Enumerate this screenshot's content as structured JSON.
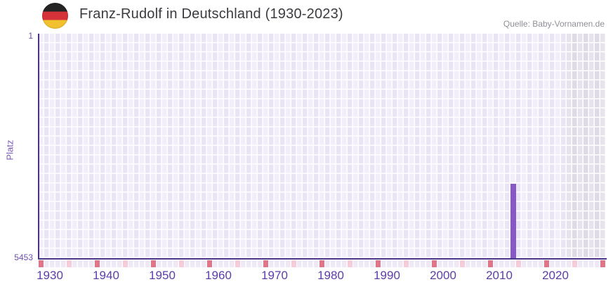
{
  "header": {
    "title": "Franz-Rudolf in Deutschland (1930-2023)",
    "source": "Quelle: Baby-Vornamen.de",
    "flag_icon": "german-flag-circle"
  },
  "chart_data": {
    "type": "bar",
    "title": "Franz-Rudolf in Deutschland (1930-2023)",
    "xlabel": "",
    "ylabel": "Platz",
    "x_range": [
      1930,
      2031
    ],
    "x_tick_labels": [
      "1930",
      "1940",
      "1950",
      "1960",
      "1970",
      "1980",
      "1990",
      "2000",
      "2010",
      "2020"
    ],
    "x_ticks": [
      1930,
      1940,
      1950,
      1960,
      1970,
      1980,
      1990,
      2000,
      2010,
      2020
    ],
    "decade_tick_years": [
      1930,
      1940,
      1950,
      1960,
      1970,
      1980,
      1990,
      2000,
      2010,
      2020,
      2030
    ],
    "half_decade_tick_years": [
      1935,
      1945,
      1955,
      1965,
      1975,
      1985,
      1995,
      2005,
      2015,
      2025
    ],
    "y_axis": {
      "top_label": "1",
      "bottom_label": "5453",
      "min": 1,
      "max": 5453,
      "reversed": true,
      "grid": true
    },
    "no_data_region_years": [
      2024,
      2031
    ],
    "series": [
      {
        "name": "Platz",
        "points": [
          {
            "year": 2014,
            "rank": 3650,
            "note": "rank estimated from bar top position on 1-5453 axis"
          }
        ]
      }
    ],
    "legend": "none",
    "colors": {
      "bar": "#8758c6",
      "axis_line": "#4b3589",
      "major_tick": "#e0758a",
      "minor_tick": "#f4cdd8",
      "label_purple": "#5c3da6",
      "cell_light": "#f2eef9",
      "cell_dark": "#eae5f4",
      "no_data_cell_light": "#e6e3ee",
      "no_data_cell_dark": "#dedbe7",
      "title_text": "#3b3b41",
      "source_text": "#8f8f98"
    }
  }
}
